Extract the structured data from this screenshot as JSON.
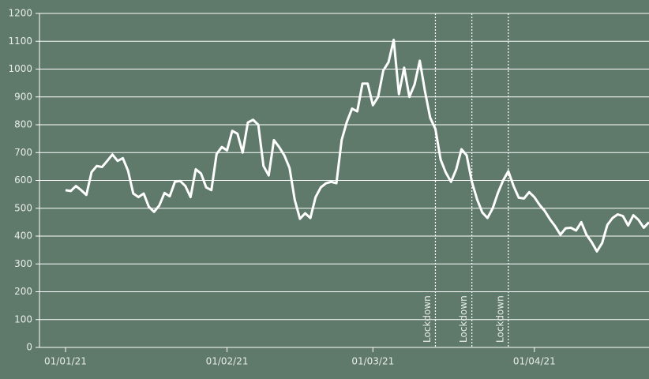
{
  "chart_data": {
    "type": "line",
    "x": [
      "2021-01-01",
      "2021-01-02",
      "2021-01-03",
      "2021-01-04",
      "2021-01-05",
      "2021-01-06",
      "2021-01-07",
      "2021-01-08",
      "2021-01-09",
      "2021-01-10",
      "2021-01-11",
      "2021-01-12",
      "2021-01-13",
      "2021-01-14",
      "2021-01-15",
      "2021-01-16",
      "2021-01-17",
      "2021-01-18",
      "2021-01-19",
      "2021-01-20",
      "2021-01-21",
      "2021-01-22",
      "2021-01-23",
      "2021-01-24",
      "2021-01-25",
      "2021-01-26",
      "2021-01-27",
      "2021-01-28",
      "2021-01-29",
      "2021-01-30",
      "2021-01-31",
      "2021-02-01",
      "2021-02-02",
      "2021-02-03",
      "2021-02-04",
      "2021-02-05",
      "2021-02-06",
      "2021-02-07",
      "2021-02-08",
      "2021-02-09",
      "2021-02-10",
      "2021-02-11",
      "2021-02-12",
      "2021-02-13",
      "2021-02-14",
      "2021-02-15",
      "2021-02-16",
      "2021-02-17",
      "2021-02-18",
      "2021-02-19",
      "2021-02-20",
      "2021-02-21",
      "2021-02-22",
      "2021-02-23",
      "2021-02-24",
      "2021-02-25",
      "2021-02-26",
      "2021-02-27",
      "2021-02-28",
      "2021-03-01",
      "2021-03-02",
      "2021-03-03",
      "2021-03-04",
      "2021-03-05",
      "2021-03-06",
      "2021-03-07",
      "2021-03-08",
      "2021-03-09",
      "2021-03-10",
      "2021-03-11",
      "2021-03-12",
      "2021-03-13",
      "2021-03-14",
      "2021-03-15",
      "2021-03-16",
      "2021-03-17",
      "2021-03-18",
      "2021-03-19",
      "2021-03-20",
      "2021-03-21",
      "2021-03-22",
      "2021-03-23",
      "2021-03-24",
      "2021-03-25",
      "2021-03-26",
      "2021-03-27",
      "2021-03-28",
      "2021-03-29",
      "2021-03-30",
      "2021-03-31",
      "2021-04-01",
      "2021-04-02",
      "2021-04-03",
      "2021-04-04",
      "2021-04-05",
      "2021-04-06",
      "2021-04-07",
      "2021-04-08",
      "2021-04-09",
      "2021-04-10",
      "2021-04-11",
      "2021-04-12",
      "2021-04-13",
      "2021-04-14",
      "2021-04-15",
      "2021-04-16",
      "2021-04-17",
      "2021-04-18",
      "2021-04-19",
      "2021-04-20",
      "2021-04-21",
      "2021-04-22",
      "2021-04-23"
    ],
    "series": [
      {
        "color": "#ffffff",
        "values": [
          565,
          562,
          580,
          565,
          548,
          630,
          652,
          648,
          670,
          693,
          670,
          680,
          635,
          553,
          540,
          553,
          505,
          487,
          510,
          555,
          543,
          595,
          598,
          580,
          540,
          640,
          625,
          575,
          565,
          695,
          720,
          708,
          778,
          768,
          700,
          808,
          818,
          800,
          652,
          618,
          745,
          720,
          690,
          645,
          530,
          462,
          482,
          465,
          540,
          575,
          590,
          595,
          590,
          745,
          810,
          858,
          848,
          948,
          948,
          870,
          900,
          995,
          1025,
          1105,
          910,
          1005,
          900,
          945,
          1030,
          920,
          825,
          785,
          675,
          628,
          595,
          640,
          712,
          690,
          595,
          532,
          485,
          465,
          500,
          555,
          600,
          633,
          580,
          538,
          535,
          558,
          540,
          512,
          490,
          460,
          435,
          405,
          428,
          430,
          420,
          450,
          405,
          378,
          345,
          375,
          440,
          465,
          478,
          472,
          438,
          475,
          458,
          430,
          450
        ]
      }
    ],
    "xlim": [
      "2020-12-27",
      "2021-04-23"
    ],
    "xticks": [
      {
        "value": "2021-01-01",
        "label": "01/01/21"
      },
      {
        "value": "2021-02-01",
        "label": "01/02/21"
      },
      {
        "value": "2021-03-01",
        "label": "01/03/21"
      },
      {
        "value": "2021-04-01",
        "label": "01/04/21"
      }
    ],
    "ylim": [
      0,
      1200
    ],
    "yticks": [
      0,
      100,
      200,
      300,
      400,
      500,
      600,
      700,
      800,
      900,
      1000,
      1100,
      1200
    ],
    "grid": true,
    "background": "#5f7a6a",
    "annotations": [
      {
        "x": "2021-03-13",
        "label": "Lockdown"
      },
      {
        "x": "2021-03-20",
        "label": "Lockdown"
      },
      {
        "x": "2021-03-27",
        "label": "Lockdown"
      }
    ]
  }
}
